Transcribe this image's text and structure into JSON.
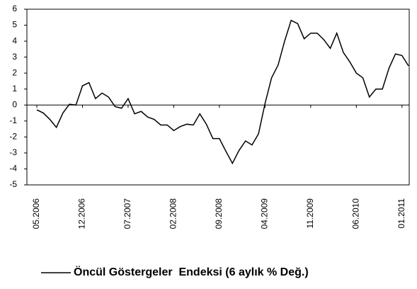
{
  "chart_data": {
    "type": "line",
    "categories": [
      "05.2006",
      null,
      null,
      null,
      null,
      null,
      null,
      "12.2006",
      null,
      null,
      null,
      null,
      null,
      null,
      "07.2007",
      null,
      null,
      null,
      null,
      null,
      null,
      "02.2008",
      null,
      null,
      null,
      null,
      null,
      null,
      "09.2008",
      null,
      null,
      null,
      null,
      null,
      null,
      "04.2009",
      null,
      null,
      null,
      null,
      null,
      null,
      "11.2009",
      null,
      null,
      null,
      null,
      null,
      null,
      "06.2010",
      null,
      null,
      null,
      null,
      null,
      null,
      "01.2011",
      null
    ],
    "series": [
      {
        "name": "Öncül Göstergeler  Endeksi (6 aylık % Değ.)",
        "color": "#000000",
        "values": [
          -0.3,
          -0.5,
          -0.9,
          -1.4,
          -0.5,
          0.05,
          0.0,
          1.2,
          1.4,
          0.4,
          0.75,
          0.5,
          -0.1,
          -0.2,
          0.4,
          -0.55,
          -0.4,
          -0.75,
          -0.9,
          -1.25,
          -1.25,
          -1.6,
          -1.35,
          -1.2,
          -1.25,
          -0.55,
          -1.2,
          -2.1,
          -2.1,
          -2.9,
          -3.65,
          -2.85,
          -2.25,
          -2.5,
          -1.8,
          0.1,
          1.7,
          2.5,
          4.0,
          5.3,
          5.1,
          4.15,
          4.5,
          4.5,
          4.1,
          3.55,
          4.5,
          3.3,
          2.7,
          2.0,
          1.7,
          0.5,
          1.0,
          1.0,
          2.3,
          3.2,
          3.1,
          2.45
        ]
      }
    ],
    "ylim": [
      -5,
      6
    ],
    "yticks": [
      -5,
      -4,
      -3,
      -2,
      -1,
      0,
      1,
      2,
      3,
      4,
      5,
      6
    ],
    "grid": false,
    "legend": "bottom"
  }
}
